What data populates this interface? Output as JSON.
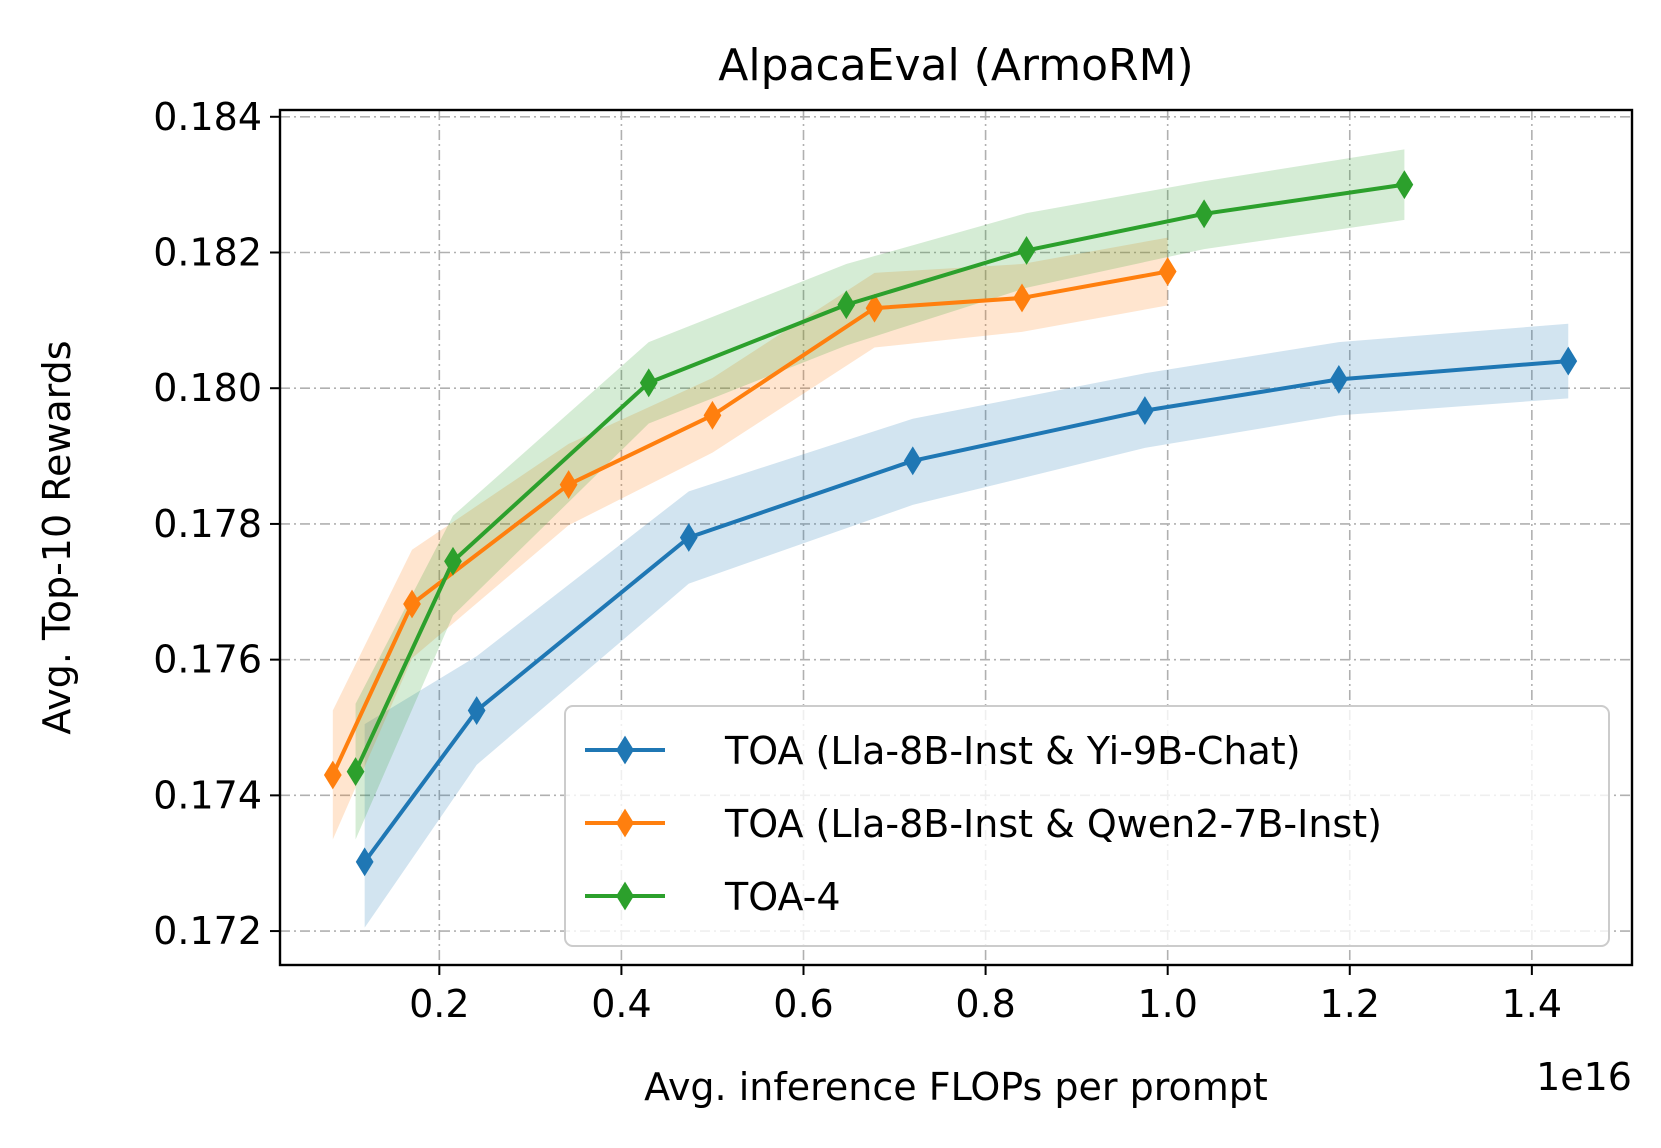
{
  "chart_data": {
    "type": "line",
    "title": "AlpacaEval (ArmoRM)",
    "xlabel": "Avg. inference FLOPs per prompt",
    "ylabel": "Avg. Top-10 Rewards",
    "x_offset_label": "1e16",
    "xlim": [
      0.025,
      1.51
    ],
    "ylim": [
      0.1715,
      0.1841
    ],
    "x_ticks": [
      0.2,
      0.4,
      0.6,
      0.8,
      1.0,
      1.2,
      1.4
    ],
    "x_tick_labels": [
      "0.2",
      "0.4",
      "0.6",
      "0.8",
      "1.0",
      "1.2",
      "1.4"
    ],
    "y_ticks": [
      0.172,
      0.174,
      0.176,
      0.178,
      0.18,
      0.182,
      0.184
    ],
    "y_tick_labels": [
      "0.172",
      "0.174",
      "0.176",
      "0.178",
      "0.180",
      "0.182",
      "0.184"
    ],
    "grid": true,
    "legend_position": "lower-right",
    "marker": "thin-diamond",
    "series": [
      {
        "name": "TOA (Lla-8B-Inst & Yi-9B-Chat)",
        "color": "#1f77b4",
        "x": [
          0.118,
          0.241,
          0.474,
          0.72,
          0.975,
          1.188,
          1.44
        ],
        "y": [
          0.17302,
          0.17525,
          0.1778,
          0.17893,
          0.17967,
          0.18013,
          0.1804
        ],
        "lower": [
          0.17205,
          0.17445,
          0.17712,
          0.17828,
          0.17912,
          0.1796,
          0.17985
        ],
        "upper": [
          0.17505,
          0.17605,
          0.17848,
          0.17955,
          0.18022,
          0.18068,
          0.18095
        ]
      },
      {
        "name": "TOA (Lla-8B-Inst & Qwen2-7B-Inst)",
        "color": "#ff7f0e",
        "x": [
          0.083,
          0.17,
          0.342,
          0.5,
          0.678,
          0.84,
          1.0
        ],
        "y": [
          0.1743,
          0.17682,
          0.17858,
          0.1796,
          0.18118,
          0.18133,
          0.18172
        ],
        "lower": [
          0.17335,
          0.17602,
          0.17798,
          0.17905,
          0.1806,
          0.18083,
          0.18122
        ],
        "upper": [
          0.17525,
          0.17762,
          0.17918,
          0.18015,
          0.1817,
          0.18183,
          0.18222
        ]
      },
      {
        "name": "TOA-4",
        "color": "#2ca02c",
        "x": [
          0.108,
          0.215,
          0.43,
          0.647,
          0.845,
          1.04,
          1.26
        ],
        "y": [
          0.17435,
          0.17745,
          0.18008,
          0.18123,
          0.18203,
          0.18257,
          0.183
        ],
        "lower": [
          0.17335,
          0.17665,
          0.17948,
          0.18063,
          0.18148,
          0.18205,
          0.18248
        ],
        "upper": [
          0.17535,
          0.17812,
          0.18068,
          0.18183,
          0.18258,
          0.18305,
          0.18352
        ]
      }
    ]
  }
}
